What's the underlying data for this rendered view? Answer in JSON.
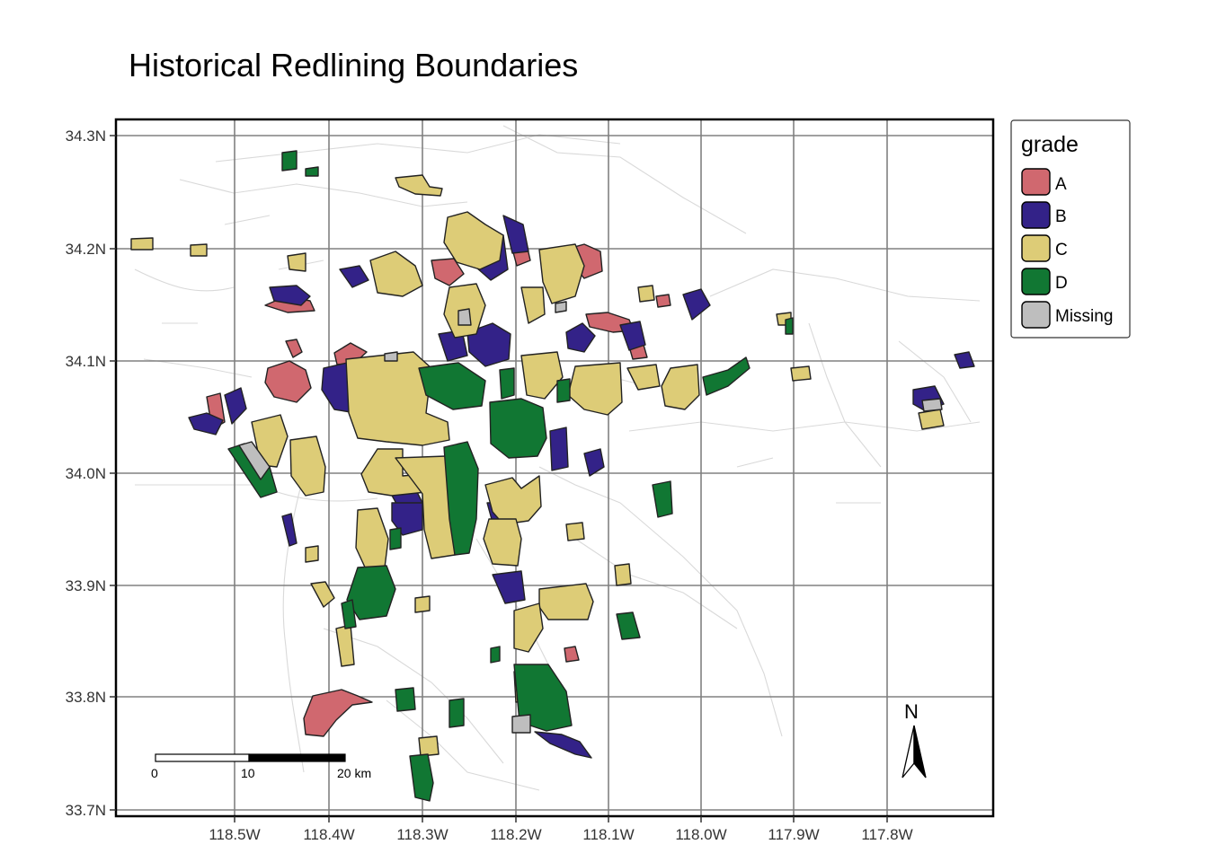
{
  "title": "Historical Redlining Boundaries",
  "axes": {
    "x_ticks": [
      "118.5W",
      "118.4W",
      "118.3W",
      "118.2W",
      "118.1W",
      "118.0W",
      "117.9W",
      "117.8W"
    ],
    "y_ticks": [
      "34.3N",
      "34.2N",
      "34.1N",
      "34.0N",
      "33.9N",
      "33.8N",
      "33.7N"
    ]
  },
  "legend": {
    "title": "grade",
    "items": [
      {
        "label": "A",
        "color": "#d0686f"
      },
      {
        "label": "B",
        "color": "#332288"
      },
      {
        "label": "C",
        "color": "#ddcc77"
      },
      {
        "label": "D",
        "color": "#117733"
      },
      {
        "label": "Missing",
        "color": "#bebebe"
      }
    ]
  },
  "scale_bar": {
    "labels": [
      "0",
      "10",
      "20 km"
    ]
  },
  "north_arrow": {
    "label": "N"
  },
  "colors": {
    "frame": "#000000",
    "grid": "#808080",
    "basemap": "#d9d9d9",
    "outline": "#222222"
  }
}
